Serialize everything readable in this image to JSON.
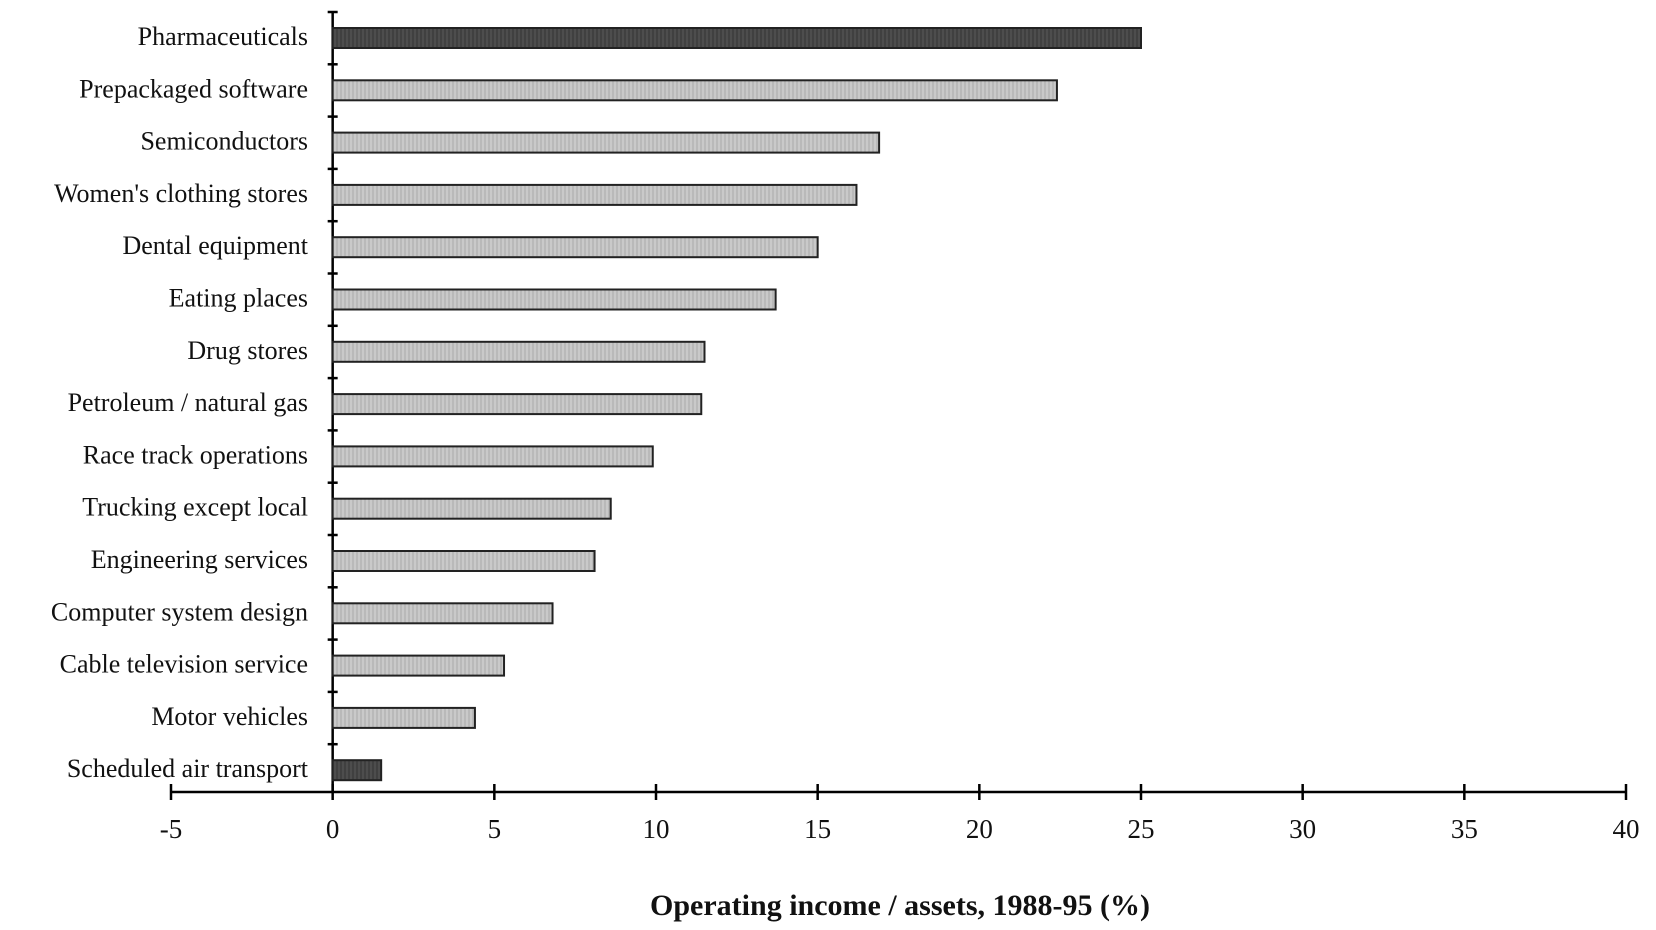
{
  "chart_data": {
    "type": "bar",
    "orientation": "horizontal",
    "title": "",
    "xlabel": "Operating income / assets, 1988-95 (%)",
    "ylabel": "",
    "xlim": [
      -5,
      40
    ],
    "x_ticks": [
      "-5",
      "0",
      "5",
      "10",
      "15",
      "20",
      "25",
      "30",
      "35",
      "40"
    ],
    "grid": false,
    "legend": "none",
    "categories": [
      "Pharmaceuticals",
      "Prepackaged software",
      "Semiconductors",
      "Women's clothing stores",
      "Dental equipment",
      "Eating places",
      "Drug stores",
      "Petroleum / natural gas",
      "Race track operations",
      "Trucking except local",
      "Engineering services",
      "Computer system design",
      "Cable television service",
      "Motor vehicles",
      "Scheduled air transport"
    ],
    "values": [
      25.0,
      22.4,
      16.9,
      16.2,
      15.0,
      13.7,
      11.5,
      11.4,
      9.9,
      8.6,
      8.1,
      6.8,
      5.3,
      4.4,
      1.5
    ],
    "bar_colors": {
      "highlight": "#4a4a4a",
      "normal": "#c8c8c8"
    },
    "highlighted_categories": [
      "Pharmaceuticals",
      "Scheduled air transport"
    ]
  }
}
